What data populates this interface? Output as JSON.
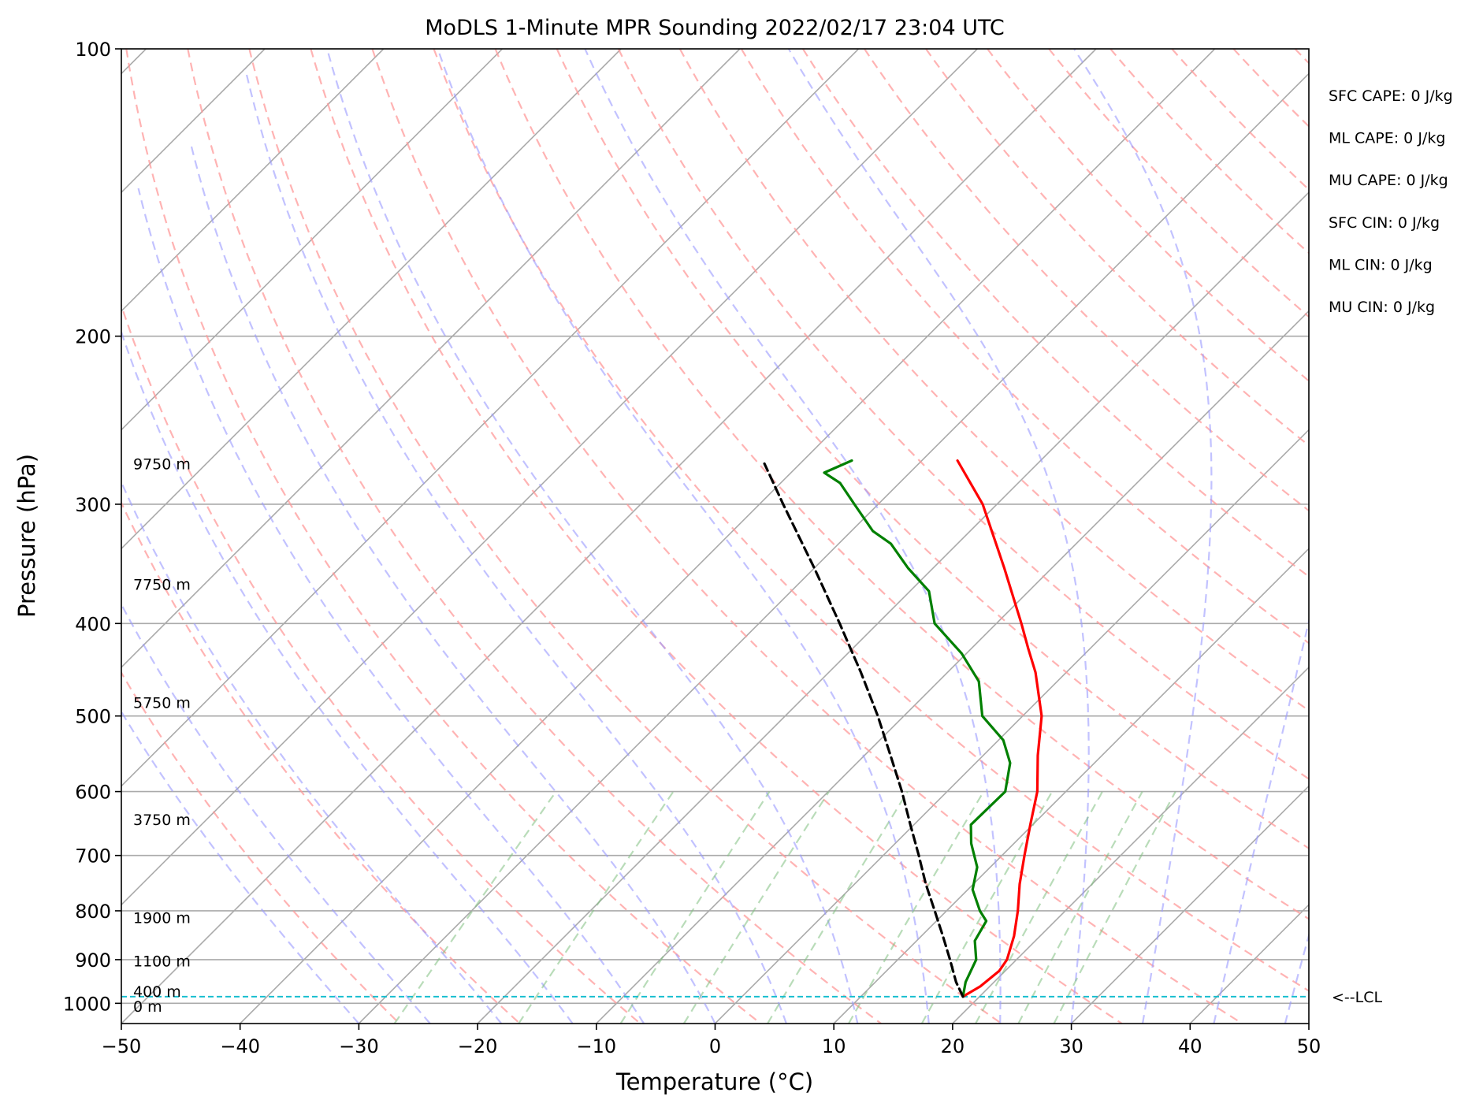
{
  "chart_data": {
    "type": "skew-t",
    "title": "MoDLS 1-Minute MPR Sounding 2022/02/17 23:04 UTC",
    "xlabel": "Temperature (°C)",
    "ylabel": "Pressure (hPa)",
    "xlim": [
      -50,
      50
    ],
    "ylim": [
      1050,
      100
    ],
    "y_scale": "log",
    "grid": true,
    "x_ticks": [
      "−50",
      "−40",
      "−30",
      "−20",
      "−10",
      "0",
      "10",
      "20",
      "30",
      "40",
      "50"
    ],
    "y_ticks": [
      "100",
      "200",
      "300",
      "400",
      "500",
      "600",
      "700",
      "800",
      "900",
      "1000"
    ],
    "height_labels": [
      {
        "label": "9750 m",
        "p": 272
      },
      {
        "label": "7750 m",
        "p": 364
      },
      {
        "label": "5750 m",
        "p": 484
      },
      {
        "label": "3750 m",
        "p": 642
      },
      {
        "label": "1900 m",
        "p": 813
      },
      {
        "label": "1100 m",
        "p": 903
      },
      {
        "label": "400 m",
        "p": 971
      },
      {
        "label": "0 m",
        "p": 1007
      }
    ],
    "indices": [
      "SFC CAPE: 0 J/kg",
      "ML CAPE: 0 J/kg",
      "MU CAPE: 0 J/kg",
      "SFC CIN: 0 J/kg",
      "ML CIN: 0 J/kg",
      "MU CIN: 0 J/kg"
    ],
    "lcl": {
      "label": "<--LCL",
      "p": 984
    },
    "series": [
      {
        "color": "#ff0000",
        "p": [
          984,
          960,
          925,
          900,
          850,
          800,
          750,
          700,
          650,
          600,
          550,
          500,
          450,
          425,
          400,
          350,
          300,
          270
        ],
        "t": [
          18.6,
          19.2,
          19.5,
          19.2,
          17.8,
          16.0,
          13.9,
          11.9,
          9.8,
          7.6,
          4.6,
          1.6,
          -2.6,
          -5.2,
          -7.9,
          -14.0,
          -21.2,
          -27.0
        ]
      },
      {
        "color": "#008000",
        "p": [
          984,
          950,
          900,
          860,
          820,
          800,
          760,
          720,
          680,
          650,
          600,
          560,
          530,
          500,
          460,
          430,
          400,
          370,
          350,
          330,
          320,
          300,
          285,
          278,
          270
        ],
        "t": [
          18.6,
          17.6,
          16.6,
          14.9,
          14.2,
          12.8,
          10.4,
          8.9,
          6.4,
          4.8,
          4.9,
          2.9,
          0.4,
          -3.4,
          -6.6,
          -10.4,
          -15.2,
          -18.4,
          -22.1,
          -25.6,
          -28.2,
          -32.0,
          -35.0,
          -37.2,
          -35.9
        ]
      },
      {
        "color": "#000000",
        "dashed": true,
        "p": [
          984,
          950,
          900,
          850,
          800,
          750,
          700,
          650,
          600,
          550,
          500,
          450,
          400,
          350,
          300,
          272
        ],
        "t": [
          18.6,
          16.8,
          14.4,
          11.8,
          9.0,
          6.0,
          3.0,
          -0.3,
          -3.8,
          -7.8,
          -12.2,
          -17.3,
          -23.2,
          -30.0,
          -38.0,
          -43.0
        ]
      }
    ],
    "colors": {
      "isotherm": "#aaaaaa",
      "dry_adiabat": "#ff9999",
      "moist_adiabat": "#9999ff",
      "mixing_ratio": "#7fbf7f",
      "lcl_line": "#17becf",
      "temperature": "#ff0000",
      "dewpoint": "#008000",
      "parcel": "#000000"
    }
  }
}
